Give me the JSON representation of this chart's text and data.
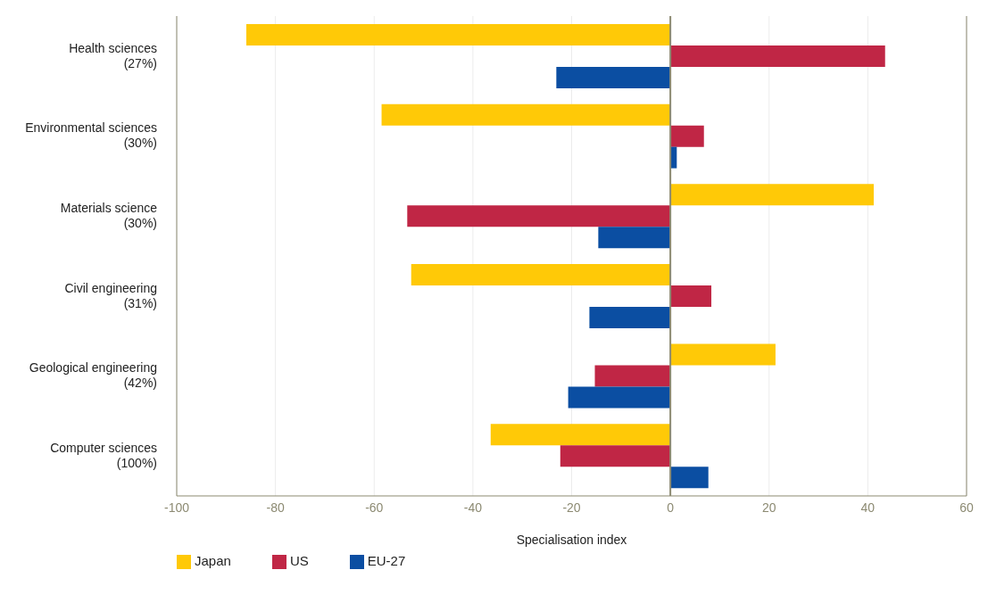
{
  "chart_data": {
    "type": "bar",
    "orientation": "horizontal",
    "xlabel": "Specialisation index",
    "categories": [
      "Health sciences\n(27%)",
      "Environmental sciences\n(30%)",
      "Materials science\n(30%)",
      "Civil engineering\n(31%)",
      "Geological engineering\n(42%)",
      "Computer sciences\n(100%)"
    ],
    "series": [
      {
        "name": "Japan",
        "color": "#ffc907",
        "values": [
          -85.9,
          -58.5,
          41.2,
          -52.5,
          21.3,
          -36.4
        ]
      },
      {
        "name": "US",
        "color": "#c02645",
        "values": [
          43.5,
          6.8,
          -53.3,
          8.3,
          -15.3,
          -22.3
        ]
      },
      {
        "name": "EU-27",
        "color": "#0b4ea2",
        "values": [
          -23.1,
          1.3,
          -14.6,
          -16.4,
          -20.7,
          7.7
        ]
      }
    ],
    "xlim": [
      -100,
      60
    ],
    "xticks": [
      -100,
      -80,
      -60,
      -40,
      -20,
      0,
      20,
      40,
      60
    ],
    "grid": "x",
    "legend": "bottom left",
    "ref_lines": [
      {
        "axis": "x",
        "value": 0,
        "color": "#8c8a72"
      }
    ]
  }
}
